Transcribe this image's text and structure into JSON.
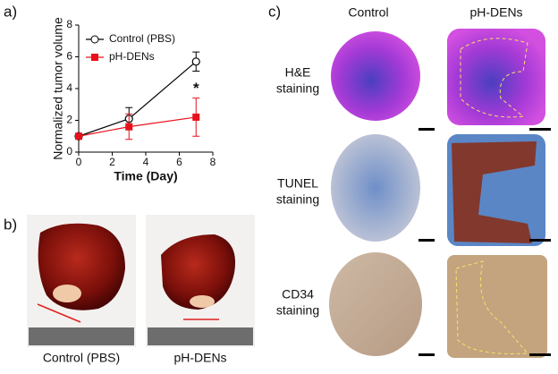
{
  "chart_data": {
    "type": "line",
    "panel_label": "a)",
    "x_label": "Time (Day)",
    "y_label": "Normalized tumor volume",
    "x": [
      0,
      3,
      7
    ],
    "series": [
      {
        "name": "Control (PBS)",
        "color": "#000000",
        "marker": "open-circle",
        "values": [
          1,
          2.1,
          5.7
        ],
        "errors": [
          0,
          0.7,
          0.6
        ]
      },
      {
        "name": "pH-DENs",
        "color": "#e8101a",
        "marker": "square",
        "values": [
          1,
          1.6,
          2.2
        ],
        "errors": [
          0,
          0.8,
          1.2
        ]
      }
    ],
    "annotation": "*",
    "xlim": [
      0,
      8
    ],
    "xticks": [
      0,
      2,
      4,
      6,
      8
    ],
    "ylim": [
      0,
      8
    ],
    "yticks": [
      0,
      2,
      4,
      6,
      8
    ],
    "legend": "upper-left"
  },
  "photos": {
    "panel_label": "b)",
    "labels": [
      "Control (PBS)",
      "pH-DENs"
    ]
  },
  "histology": {
    "panel_label": "c)",
    "columns": [
      "Control",
      "pH-DENs"
    ],
    "rows": [
      [
        "H&E",
        "staining"
      ],
      [
        "TUNEL",
        "staining"
      ],
      [
        "CD34",
        "staining"
      ]
    ]
  }
}
